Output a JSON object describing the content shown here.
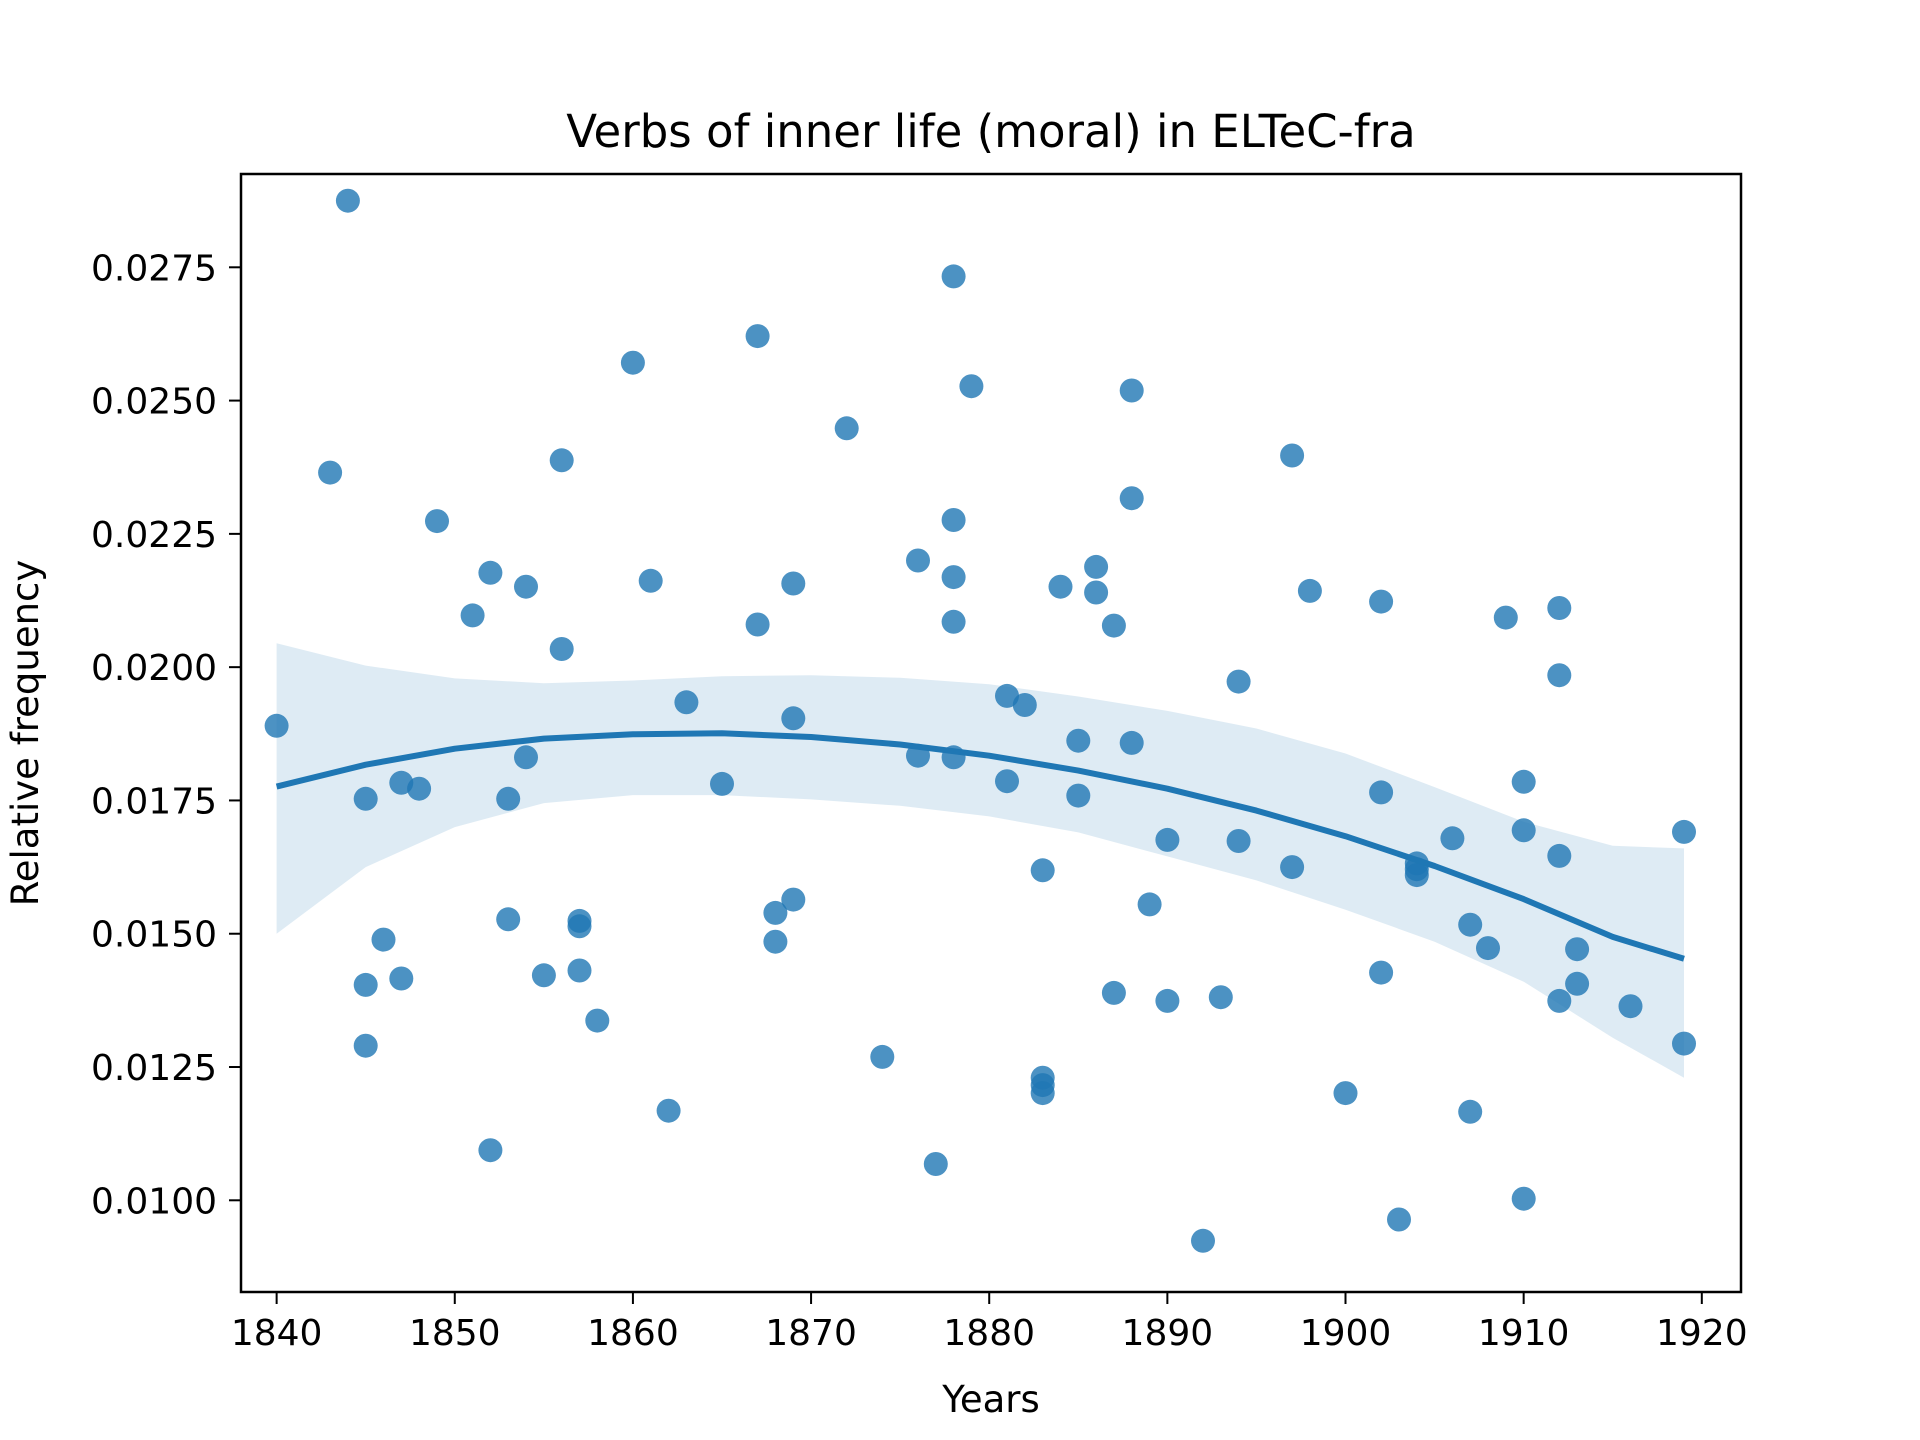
{
  "chart_data": {
    "type": "scatter",
    "title": "Verbs of inner life (moral) in ELTeC-fra",
    "xlabel": "Years",
    "ylabel": "Relative frequency",
    "xlim": [
      1838,
      1922.2
    ],
    "ylim": [
      0.00828,
      0.02925
    ],
    "x_ticks": [
      1840,
      1850,
      1860,
      1870,
      1880,
      1890,
      1900,
      1910,
      1920
    ],
    "y_ticks": [
      0.01,
      0.0125,
      0.015,
      0.0175,
      0.02,
      0.0225,
      0.025,
      0.0275
    ],
    "y_tick_labels": [
      "0.0100",
      "0.0125",
      "0.0150",
      "0.0175",
      "0.0200",
      "0.0225",
      "0.0250",
      "0.0275"
    ],
    "grid": false,
    "colors": {
      "points": "#1f77b4",
      "line": "#1f77b4",
      "band": "#1f77b4"
    },
    "points": [
      [
        1840,
        0.0189
      ],
      [
        1843,
        0.02365
      ],
      [
        1844,
        0.02875
      ],
      [
        1845,
        0.01753
      ],
      [
        1845,
        0.01404
      ],
      [
        1845,
        0.0129
      ],
      [
        1846,
        0.01489
      ],
      [
        1847,
        0.01783
      ],
      [
        1847,
        0.01416
      ],
      [
        1848,
        0.01772
      ],
      [
        1849,
        0.02274
      ],
      [
        1851,
        0.02097
      ],
      [
        1852,
        0.02177
      ],
      [
        1852,
        0.01094
      ],
      [
        1853,
        0.01753
      ],
      [
        1853,
        0.01527
      ],
      [
        1854,
        0.02151
      ],
      [
        1854,
        0.01831
      ],
      [
        1855,
        0.01422
      ],
      [
        1856,
        0.02388
      ],
      [
        1856,
        0.02034
      ],
      [
        1857,
        0.01524
      ],
      [
        1857,
        0.01514
      ],
      [
        1857,
        0.01431
      ],
      [
        1858,
        0.01337
      ],
      [
        1860,
        0.02571
      ],
      [
        1861,
        0.02162
      ],
      [
        1862,
        0.01168
      ],
      [
        1863,
        0.01934
      ],
      [
        1865,
        0.01781
      ],
      [
        1867,
        0.02621
      ],
      [
        1867,
        0.0208
      ],
      [
        1868,
        0.01539
      ],
      [
        1868,
        0.01485
      ],
      [
        1869,
        0.02157
      ],
      [
        1869,
        0.01904
      ],
      [
        1869,
        0.01564
      ],
      [
        1872,
        0.02448
      ],
      [
        1874,
        0.01269
      ],
      [
        1876,
        0.022
      ],
      [
        1876,
        0.01834
      ],
      [
        1877,
        0.01068
      ],
      [
        1878,
        0.02733
      ],
      [
        1878,
        0.02276
      ],
      [
        1878,
        0.02169
      ],
      [
        1878,
        0.02085
      ],
      [
        1878,
        0.01831
      ],
      [
        1879,
        0.02527
      ],
      [
        1881,
        0.01946
      ],
      [
        1881,
        0.01786
      ],
      [
        1882,
        0.01929
      ],
      [
        1883,
        0.01619
      ],
      [
        1883,
        0.0123
      ],
      [
        1883,
        0.01216
      ],
      [
        1883,
        0.01201
      ],
      [
        1884,
        0.02151
      ],
      [
        1885,
        0.01862
      ],
      [
        1885,
        0.01759
      ],
      [
        1886,
        0.02188
      ],
      [
        1886,
        0.0214
      ],
      [
        1887,
        0.02078
      ],
      [
        1887,
        0.01389
      ],
      [
        1888,
        0.02519
      ],
      [
        1888,
        0.02317
      ],
      [
        1888,
        0.01858
      ],
      [
        1889,
        0.01555
      ],
      [
        1890,
        0.01676
      ],
      [
        1890,
        0.01374
      ],
      [
        1892,
        0.00924
      ],
      [
        1893,
        0.01381
      ],
      [
        1894,
        0.01973
      ],
      [
        1894,
        0.01674
      ],
      [
        1897,
        0.02397
      ],
      [
        1897,
        0.01625
      ],
      [
        1898,
        0.02143
      ],
      [
        1900,
        0.01201
      ],
      [
        1902,
        0.02123
      ],
      [
        1902,
        0.01765
      ],
      [
        1902,
        0.01427
      ],
      [
        1903,
        0.00964
      ],
      [
        1904,
        0.01632
      ],
      [
        1904,
        0.01621
      ],
      [
        1904,
        0.0161
      ],
      [
        1906,
        0.01679
      ],
      [
        1907,
        0.01517
      ],
      [
        1907,
        0.01166
      ],
      [
        1908,
        0.01473
      ],
      [
        1909,
        0.02093
      ],
      [
        1910,
        0.01785
      ],
      [
        1910,
        0.01694
      ],
      [
        1910,
        0.01003
      ],
      [
        1912,
        0.02111
      ],
      [
        1912,
        0.01985
      ],
      [
        1912,
        0.01646
      ],
      [
        1912,
        0.01374
      ],
      [
        1913,
        0.01471
      ],
      [
        1913,
        0.01406
      ],
      [
        1916,
        0.01364
      ],
      [
        1919,
        0.01691
      ],
      [
        1919,
        0.01294
      ]
    ],
    "regression_line": [
      [
        1840,
        0.01776
      ],
      [
        1845,
        0.01817
      ],
      [
        1850,
        0.01847
      ],
      [
        1855,
        0.01866
      ],
      [
        1860,
        0.01874
      ],
      [
        1865,
        0.01876
      ],
      [
        1870,
        0.01869
      ],
      [
        1875,
        0.01855
      ],
      [
        1880,
        0.01834
      ],
      [
        1885,
        0.01806
      ],
      [
        1890,
        0.01772
      ],
      [
        1895,
        0.01731
      ],
      [
        1900,
        0.01683
      ],
      [
        1905,
        0.01627
      ],
      [
        1910,
        0.01565
      ],
      [
        1915,
        0.01494
      ],
      [
        1919,
        0.01453
      ]
    ],
    "confidence_band": {
      "x": [
        1840,
        1845,
        1850,
        1855,
        1860,
        1865,
        1870,
        1875,
        1880,
        1885,
        1890,
        1895,
        1900,
        1905,
        1910,
        1915,
        1919
      ],
      "upper": [
        0.02045,
        0.02003,
        0.01979,
        0.0197,
        0.01975,
        0.01983,
        0.01985,
        0.0198,
        0.01968,
        0.01945,
        0.01918,
        0.01885,
        0.01838,
        0.01775,
        0.0171,
        0.01665,
        0.0166
      ],
      "lower": [
        0.015,
        0.01625,
        0.017,
        0.01745,
        0.0176,
        0.0176,
        0.01752,
        0.0174,
        0.0172,
        0.0169,
        0.01645,
        0.016,
        0.01545,
        0.01485,
        0.0141,
        0.01305,
        0.0123
      ]
    }
  }
}
